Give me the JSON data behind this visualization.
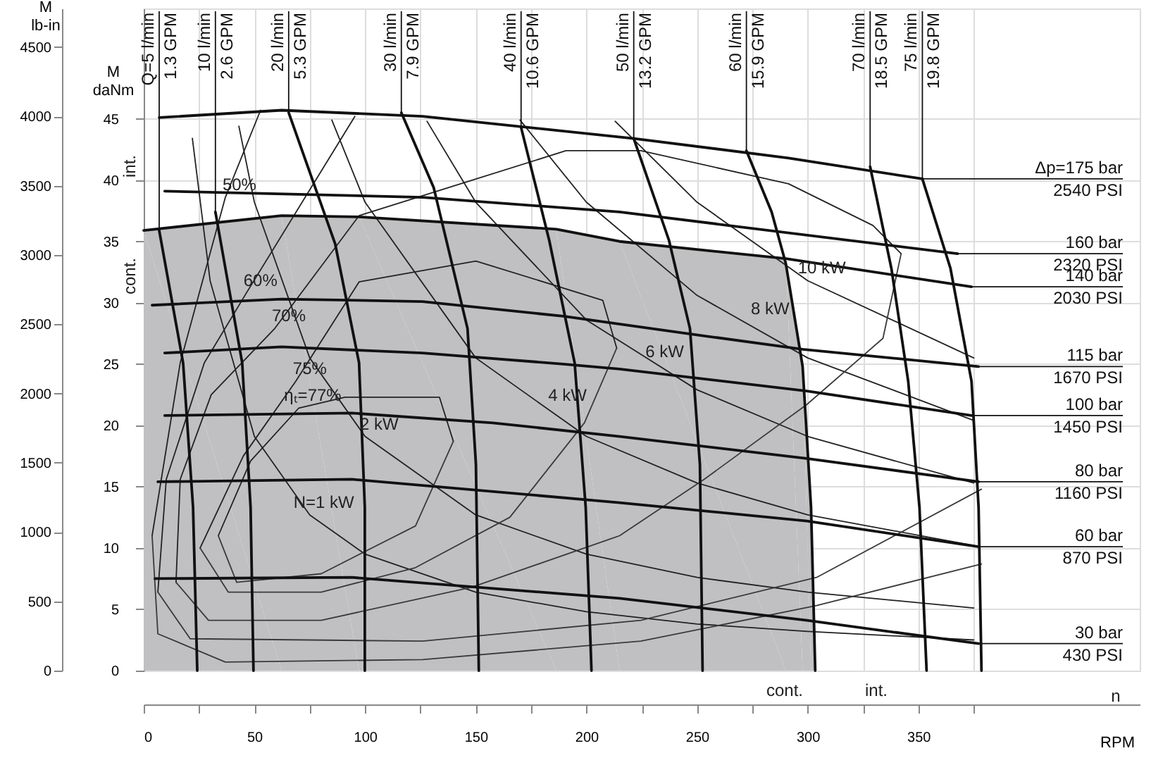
{
  "chart_data": {
    "type": "line",
    "xlabel": "RPM",
    "ylabel": "M\ndaNm",
    "y2label": "M\nlb-in",
    "xlim": [
      0,
      450
    ],
    "xticks": [
      0,
      {
        "value": 25,
        "label": null
      },
      50,
      {
        "value": 75,
        "label": null
      },
      100,
      {
        "value": 125,
        "label": null
      },
      150,
      {
        "value": 175,
        "label": null
      },
      200,
      {
        "value": 225,
        "label": null
      },
      250,
      {
        "value": 275,
        "label": null
      },
      300,
      {
        "value": 325,
        "label": null
      },
      350,
      {
        "value": 375,
        "label": null
      }
    ],
    "ylim": [
      0,
      54
    ],
    "yticks": [
      0,
      5,
      10,
      15,
      20,
      25,
      30,
      35,
      40,
      45
    ],
    "y2lim": [
      0,
      4779
    ],
    "y2ticks": [
      0,
      500,
      1000,
      1500,
      2000,
      2500,
      3000,
      3500,
      4000,
      4500
    ],
    "grid": true,
    "series": [
      {
        "type": "area",
        "color": "#c0c0c2",
        "x": [
          0,
          62.3,
          97.3,
          186.4,
          215,
          290.1,
          297.7,
          301.5,
          303.4
        ],
        "values": [
          35.9,
          37.1,
          37.0,
          36.0,
          35.0,
          33.6,
          24.8,
          13.3,
          0
        ]
      },
      {
        "color": "#222222",
        "x": [
          22,
          30,
          50,
          75,
          100,
          150,
          200,
          250,
          300,
          375
        ],
        "values": [
          43.4,
          31.8,
          19.1,
          12.7,
          9.5,
          6.4,
          4.8,
          3.8,
          3.2,
          2.5
        ]
      },
      {
        "color": "#222222",
        "x": [
          43,
          50,
          75,
          100,
          150,
          200,
          250,
          300,
          375
        ],
        "values": [
          44.4,
          38.2,
          25.5,
          19.1,
          12.7,
          9.5,
          7.6,
          6.4,
          5.1
        ]
      },
      {
        "color": "#222222",
        "x": [
          85,
          100,
          150,
          200,
          250,
          300,
          375
        ],
        "values": [
          44.9,
          38.2,
          25.5,
          19.1,
          15.3,
          12.7,
          10.2
        ]
      },
      {
        "color": "#222222",
        "x": [
          128,
          150,
          200,
          250,
          300,
          375
        ],
        "values": [
          44.8,
          38.2,
          28.6,
          22.9,
          19.1,
          15.3
        ]
      },
      {
        "color": "#222222",
        "x": [
          170,
          200,
          250,
          300,
          375
        ],
        "values": [
          44.9,
          38.2,
          30.6,
          25.5,
          20.4
        ]
      },
      {
        "color": "#222222",
        "x": [
          213,
          250,
          300,
          375
        ],
        "values": [
          44.8,
          38.2,
          31.8,
          25.5
        ]
      },
      {
        "color": "#222222",
        "x": [
          33.7,
          48.3,
          70.0,
          91.0,
          133.6,
          139.9
        ],
        "values": [
          11.0,
          17.1,
          21.4,
          22.3,
          22.3,
          18.7
        ]
      },
      {
        "color": "#3a3a3a",
        "x": [
          33.7,
          42.0,
          80.2,
          122.8,
          139.9
        ],
        "values": [
          11.0,
          7.2,
          7.9,
          11.8,
          18.7
        ]
      },
      {
        "color": "#222222",
        "x": [
          25.5,
          45,
          68.7,
          97.3,
          150.1,
          207.4,
          213.7
        ],
        "values": [
          10.0,
          17.5,
          23.6,
          31.7,
          33.4,
          30.2,
          26.3
        ]
      },
      {
        "color": "#3a3a3a",
        "x": [
          25.5,
          38.2,
          80.2,
          122.8,
          165.4,
          199.1,
          213.7
        ],
        "values": [
          10.0,
          6.4,
          6.4,
          8.4,
          12.5,
          20.2,
          26.3
        ]
      },
      {
        "color": "#222222",
        "x": [
          14.6,
          16.5,
          30.5,
          59.2,
          97.3,
          190.8,
          224.6,
          291.3,
          329.5,
          342.2
        ],
        "values": [
          7.2,
          15.6,
          22.5,
          27.9,
          37.1,
          42.4,
          42.4,
          39.7,
          36.3,
          34.0
        ]
      },
      {
        "color": "#3a3a3a",
        "x": [
          14.6,
          29.3,
          80.2,
          148.2,
          215,
          253.2,
          299.6,
          334,
          342.2
        ],
        "values": [
          7.2,
          4.1,
          4.1,
          6.8,
          11.0,
          15.6,
          21.7,
          27.1,
          34.0
        ]
      },
      {
        "color": "#222222",
        "x": [
          6.4,
          10.2,
          27.4,
          46.4,
          95.4
        ],
        "values": [
          6.4,
          15.6,
          25.1,
          30.8,
          45.2
        ]
      },
      {
        "color": "#3a3a3a",
        "x": [
          6.4,
          21.0,
          126,
          224.6,
          304,
          378.5
        ],
        "values": [
          6.4,
          2.6,
          2.4,
          4.1,
          7.6,
          14.8
        ]
      },
      {
        "color": "#222222",
        "x": [
          3.8,
          16.5,
          36.9,
          52.8
        ],
        "values": [
          11.0,
          25.1,
          38.6,
          45.7
        ]
      },
      {
        "color": "#3a3a3a",
        "x": [
          3.8,
          6.4,
          36.9,
          126,
          224.6,
          304,
          378.5
        ],
        "values": [
          11.0,
          3.0,
          0.7,
          0.9,
          2.4,
          5.3,
          8.7
        ]
      },
      {
        "name": "Q=5 l/min\n1.3 GPM",
        "color": "#111111",
        "x": [
          7.0,
          17.8,
          22.3,
          24.2
        ],
        "values": [
          35.9,
          25.1,
          13.3,
          0
        ]
      },
      {
        "name": "10 l/min\n2.6 GPM",
        "color": "#111111",
        "x": [
          32.4,
          44.5,
          48.3,
          49.6
        ],
        "values": [
          37.4,
          25.1,
          13.3,
          0
        ]
      },
      {
        "name": "20 l/min\n5.3 GPM",
        "color": "#111111",
        "x": [
          65.5,
          86.5,
          97.3,
          99.9,
          99.9
        ],
        "values": [
          45.5,
          34.8,
          25.1,
          13.3,
          0
        ]
      },
      {
        "name": "30 l/min\n7.9 GPM",
        "color": "#111111",
        "x": [
          116.4,
          131.0,
          146.3,
          150.1,
          151.4
        ],
        "values": [
          45.5,
          39.4,
          27.9,
          16.8,
          0
        ]
      },
      {
        "name": "40 l/min\n10.6 GPM",
        "color": "#111111",
        "x": [
          170.5,
          183.2,
          194.7,
          199.7,
          202.3
        ],
        "values": [
          44.3,
          35.1,
          25.1,
          13.3,
          0
        ]
      },
      {
        "name": "50 l/min\n13.2 GPM",
        "color": "#111111",
        "x": [
          221.4,
          237.3,
          246.8,
          251.3,
          252.5
        ],
        "values": [
          43.4,
          35.1,
          27.9,
          16.8,
          0
        ]
      },
      {
        "name": "60 l/min\n15.9 GPM",
        "color": "#111111",
        "x": [
          272.3,
          283.7,
          290.1,
          297.7,
          301.5,
          303.4
        ],
        "values": [
          42.4,
          37.4,
          33.2,
          24.8,
          13.3,
          0
        ]
      },
      {
        "name": "70 l/min\n18.5 GPM",
        "color": "#111111",
        "x": [
          328.2,
          337.8,
          345.4,
          350.5,
          353.7
        ],
        "values": [
          41.1,
          32.8,
          23.6,
          13.3,
          0
        ]
      },
      {
        "name": "75 l/min\n19.8 GPM",
        "color": "#111111",
        "x": [
          351.8,
          364.5,
          374.0,
          377.2,
          378.5
        ],
        "values": [
          40.1,
          32.8,
          23.6,
          13.3,
          0
        ]
      },
      {
        "name": "Δp=175 bar\n2540 PSI",
        "color": "#111111",
        "x": [
          7.0,
          62.3,
          126,
          221.4,
          291.3,
          351.8
        ],
        "values": [
          45.1,
          45.7,
          45.2,
          43.4,
          41.8,
          40.1
        ]
      },
      {
        "name": "160 bar\n2320 PSI",
        "color": "#111111",
        "x": [
          9.5,
          126,
          215,
          367.7
        ],
        "values": [
          39.1,
          38.6,
          37.4,
          34.0
        ]
      },
      {
        "name": "140 bar\n2030 PSI",
        "color": "#111111",
        "x": [
          0,
          62.3,
          97.3,
          186.4,
          215,
          290.1,
          374.0
        ],
        "values": [
          35.9,
          37.1,
          37.0,
          36.0,
          35.0,
          33.6,
          31.3
        ]
      },
      {
        "name": "115 bar\n1670 PSI",
        "color": "#111111",
        "x": [
          3.8,
          62.3,
          126,
          189.6,
          253.2,
          297.7,
          377.2
        ],
        "values": [
          29.8,
          30.3,
          30.1,
          28.9,
          27.3,
          26.2,
          24.8
        ]
      },
      {
        "name": "100 bar\n1450 PSI",
        "color": "#111111",
        "x": [
          9.5,
          62.3,
          126,
          189.6,
          215,
          299.6,
          374.0
        ],
        "values": [
          25.9,
          26.4,
          25.9,
          25.0,
          24.6,
          22.8,
          20.8
        ]
      },
      {
        "name": "80 bar\n1160 PSI",
        "color": "#111111",
        "x": [
          9.5,
          94.1,
          157.8,
          215,
          299.6,
          377.2
        ],
        "values": [
          20.8,
          21.0,
          20.2,
          19.1,
          17.3,
          15.4
        ]
      },
      {
        "name": "60 bar\n870 PSI",
        "color": "#111111",
        "x": [
          6.4,
          94.1,
          215,
          299.6,
          377.2
        ],
        "values": [
          15.4,
          15.6,
          13.7,
          12.2,
          10.1
        ]
      },
      {
        "name": "30 bar\n430 PSI",
        "color": "#111111",
        "x": [
          5.1,
          94.1,
          215,
          299.6,
          377.2
        ],
        "values": [
          7.5,
          7.6,
          5.9,
          4.1,
          2.2
        ]
      }
    ],
    "annotations": [
      {
        "text": "50%",
        "x": 36.9,
        "y": 38.6
      },
      {
        "text": "60%",
        "x": 46.4,
        "y": 30.8
      },
      {
        "text": "70%",
        "x": 59.2,
        "y": 27.9
      },
      {
        "text": "75%",
        "x": 68.7,
        "y": 23.6
      },
      {
        "text": "ηₜ=77%",
        "x": 70.0,
        "y": 21.4
      },
      {
        "text": "N=1 kW",
        "x": 75,
        "y": 12.7
      },
      {
        "text": "2 kW",
        "x": 100,
        "y": 19.1
      },
      {
        "text": "4 kW",
        "x": 185.1,
        "y": 21.4
      },
      {
        "text": "6 kW",
        "x": 229,
        "y": 25.0
      },
      {
        "text": "8 kW",
        "x": 276.7,
        "y": 28.5
      },
      {
        "text": "10 kW",
        "x": 300,
        "y": 31.8
      },
      "cont.",
      "int.",
      "cont.",
      "int.",
      "n"
    ]
  }
}
